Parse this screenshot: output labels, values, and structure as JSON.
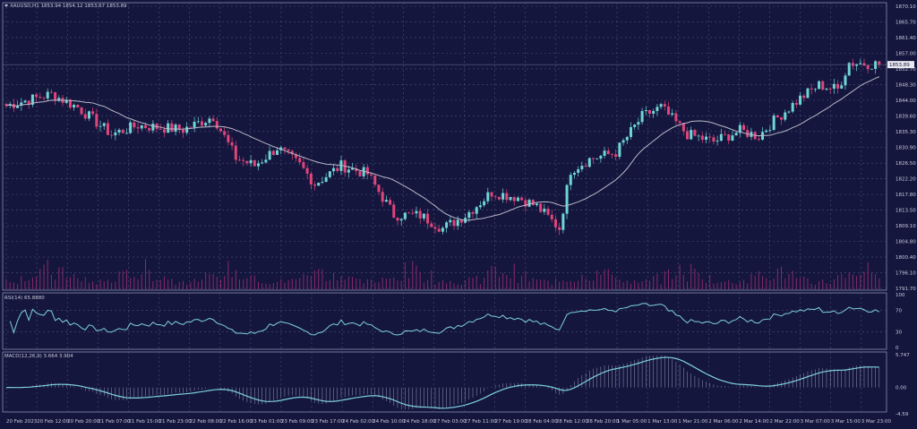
{
  "header": {
    "symbol": "XAUUSD,H1",
    "ohlc": "1853.94 1854.12 1853.67 1853.89"
  },
  "colors": {
    "background": "#14163d",
    "bull": "#6fd6d6",
    "bear": "#e0457b",
    "grid": "#4a5080",
    "ma": "#b8b8c8",
    "volume": "#8a2a6a",
    "rsi": "#7fd0e0",
    "macd": "#7fd0e0"
  },
  "chart_data": {
    "type": "candlestick",
    "title": "XAUUSD,H1",
    "current_price": "1853.89",
    "price_ticks": [
      "1870.10",
      "1865.70",
      "1861.40",
      "1857.00",
      "1852.70",
      "1848.30",
      "1844.00",
      "1839.60",
      "1835.30",
      "1830.90",
      "1826.50",
      "1822.20",
      "1817.80",
      "1813.50",
      "1809.10",
      "1804.80",
      "1800.40",
      "1796.10",
      "1791.70"
    ],
    "ylim": [
      1791.7,
      1870.1
    ],
    "time_ticks": [
      "20 Feb 2023",
      "20 Feb 12:00",
      "20 Feb 20:00",
      "21 Feb 07:00",
      "21 Feb 15:00",
      "21 Feb 23:00",
      "22 Feb 08:00",
      "22 Feb 16:00",
      "23 Feb 01:00",
      "23 Feb 09:00",
      "23 Feb 17:00",
      "24 Feb 02:00",
      "24 Feb 10:00",
      "24 Feb 18:00",
      "27 Feb 03:00",
      "27 Feb 11:00",
      "27 Feb 19:00",
      "28 Feb 04:00",
      "28 Feb 12:00",
      "28 Feb 20:00",
      "1 Mar 05:00",
      "1 Mar 13:00",
      "1 Mar 21:00",
      "2 Mar 06:00",
      "2 Mar 14:00",
      "2 Mar 22:00",
      "3 Mar 07:00",
      "3 Mar 15:00",
      "3 Mar 23:00"
    ],
    "close_path": [
      [
        0,
        1842.5
      ],
      [
        12,
        1845.7
      ],
      [
        19,
        1842
      ],
      [
        28,
        1834.5
      ],
      [
        35,
        1837
      ],
      [
        47,
        1835.8
      ],
      [
        55,
        1839.5
      ],
      [
        61,
        1828
      ],
      [
        66,
        1825.8
      ],
      [
        72,
        1830.8
      ],
      [
        78,
        1826
      ],
      [
        82,
        1820.8
      ],
      [
        89,
        1825.8
      ],
      [
        96,
        1823.5
      ],
      [
        103,
        1812.1
      ],
      [
        110,
        1812
      ],
      [
        116,
        1808.4
      ],
      [
        122,
        1812
      ],
      [
        129,
        1818.4
      ],
      [
        136,
        1817
      ],
      [
        141,
        1814.5
      ],
      [
        147,
        1808.4
      ],
      [
        150,
        1824.6
      ],
      [
        155,
        1827.6
      ],
      [
        162,
        1829.5
      ],
      [
        169,
        1839.5
      ],
      [
        174,
        1842
      ],
      [
        181,
        1834.5
      ],
      [
        188,
        1832.5
      ],
      [
        195,
        1835.5
      ],
      [
        200,
        1834
      ],
      [
        204,
        1838.3
      ],
      [
        211,
        1844.5
      ],
      [
        216,
        1848.2
      ],
      [
        221,
        1847
      ],
      [
        224,
        1854.4
      ],
      [
        232,
        1854
      ]
    ],
    "ma_period": 20,
    "rsi": {
      "label": "RSI(14) 65.8880",
      "levels": [
        "100",
        "70",
        "30",
        "0"
      ]
    },
    "macd": {
      "label": "MACD(12,26,9) 3.664 3.904",
      "ticks": [
        "5.747",
        "0.00",
        "-4.59"
      ]
    }
  }
}
